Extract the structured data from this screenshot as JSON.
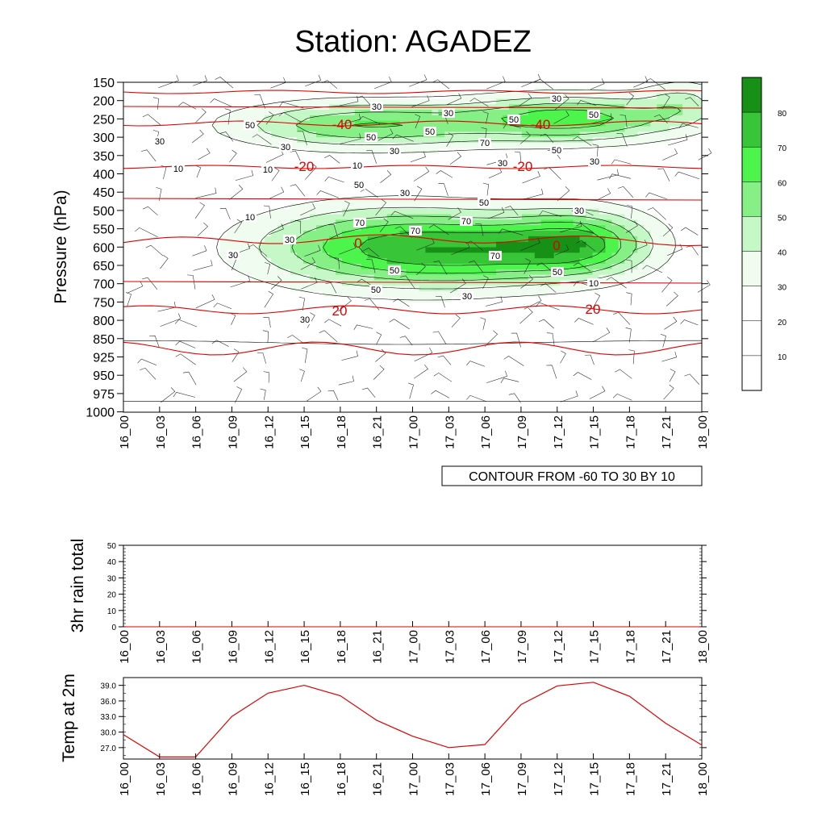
{
  "title": "Station: AGADEZ",
  "chart_data": [
    {
      "type": "heatmap",
      "name": "time-pressure cross section",
      "ylabel": "Pressure (hPa)",
      "xlabel": "",
      "y_ticks": [
        "150",
        "200",
        "250",
        "300",
        "350",
        "400",
        "450",
        "500",
        "550",
        "600",
        "650",
        "700",
        "750",
        "800",
        "850",
        "925",
        "950",
        "975",
        "1000"
      ],
      "x_ticks": [
        "16_00",
        "16_03",
        "16_06",
        "16_09",
        "16_12",
        "16_15",
        "16_18",
        "16_21",
        "17_00",
        "17_03",
        "17_06",
        "17_09",
        "17_12",
        "17_15",
        "17_18",
        "17_21",
        "18_00"
      ],
      "colorbar_ticks": [
        "80",
        "70",
        "60",
        "50",
        "40",
        "30",
        "20",
        "10"
      ],
      "colorbar_colors": [
        "#ffffff",
        "#ffffff",
        "#ffffff",
        "#f0fcf0",
        "#c6f7c6",
        "#86ef86",
        "#4cf44c",
        "#38c538",
        "#169116"
      ],
      "info_label": "CONTOUR FROM -60 TO 30 BY 10",
      "humidity_labels": [
        "30",
        "30",
        "30",
        "30",
        "50",
        "50",
        "50",
        "50",
        "50",
        "30",
        "30",
        "30",
        "10",
        "10",
        "10",
        "30",
        "50",
        "70",
        "50",
        "30",
        "50",
        "10",
        "30",
        "70",
        "70",
        "70",
        "70",
        "50",
        "50",
        "50",
        "30",
        "10",
        "30",
        "30",
        "30"
      ],
      "temperature_labels": [
        "-40",
        "-40",
        "-20",
        "-20",
        "0",
        "0",
        "20",
        "20"
      ],
      "temperature_isotherms": [
        -60,
        -40,
        -20,
        0,
        20,
        30
      ]
    },
    {
      "type": "line",
      "name": "rain",
      "ylabel": "3hr rain total",
      "categories": [
        "16_00",
        "16_03",
        "16_06",
        "16_09",
        "16_12",
        "16_15",
        "16_18",
        "16_21",
        "17_00",
        "17_03",
        "17_06",
        "17_09",
        "17_12",
        "17_15",
        "17_18",
        "17_21",
        "18_00"
      ],
      "values": [
        0,
        0,
        0,
        0,
        0,
        0,
        0,
        0,
        0,
        0,
        0,
        0,
        0,
        0,
        0,
        0,
        0
      ],
      "ylim": [
        0,
        50
      ],
      "y_ticks": [
        "0",
        "10",
        "20",
        "30",
        "40",
        "50"
      ]
    },
    {
      "type": "line",
      "name": "temp",
      "ylabel": "Temp at 2m",
      "categories": [
        "16_00",
        "16_03",
        "16_06",
        "16_09",
        "16_12",
        "16_15",
        "16_18",
        "16_21",
        "17_00",
        "17_03",
        "17_06",
        "17_09",
        "17_12",
        "17_15",
        "17_18",
        "17_21",
        "18_00"
      ],
      "values": [
        29.5,
        25.2,
        25.2,
        33.0,
        37.5,
        39.0,
        37.0,
        32.3,
        29.2,
        27.0,
        27.6,
        35.3,
        38.9,
        39.6,
        36.9,
        31.7,
        27.5
      ],
      "ylim": [
        24.8,
        40.5
      ],
      "y_ticks": [
        "27.0",
        "30.0",
        "33.0",
        "36.0",
        "39.0"
      ],
      "color": "#e00000"
    }
  ]
}
